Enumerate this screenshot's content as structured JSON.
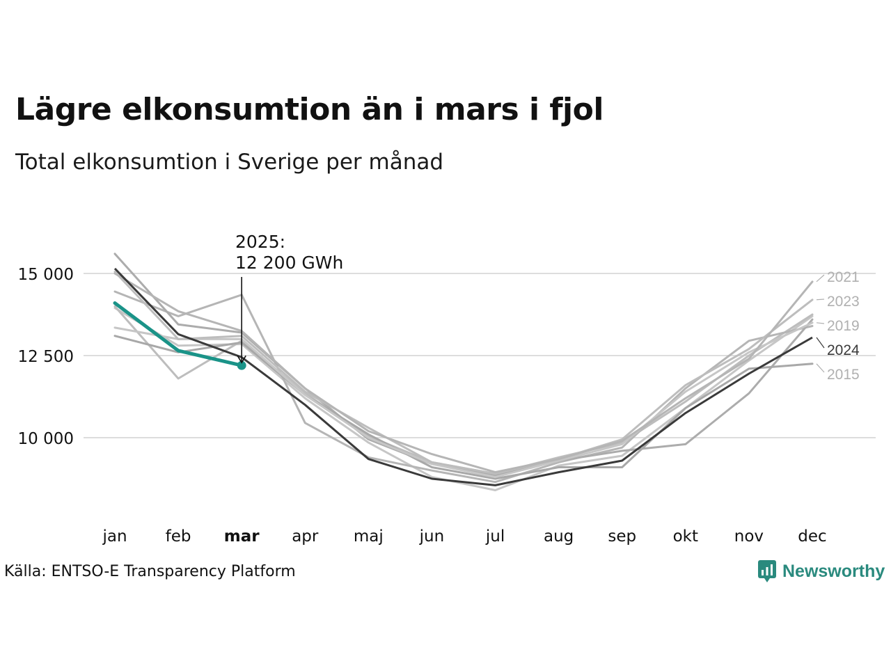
{
  "title": "Lägre elkonsumtion än i mars i fjol",
  "subtitle": "Total elkonsumtion i Sverige per månad",
  "source": "Källa: ENTSO-E Transparency Platform",
  "logo_text": "Newsworthy",
  "annotation": {
    "line1": "2025:",
    "line2": "12 200 GWh"
  },
  "colors": {
    "highlight": "#1a9388",
    "current_year": "#3a3a3a",
    "other_years": "#b8b8b8",
    "grid": "#dddddd"
  },
  "chart_data": {
    "type": "line",
    "categories": [
      "jan",
      "feb",
      "mar",
      "apr",
      "maj",
      "jun",
      "jul",
      "aug",
      "sep",
      "okt",
      "nov",
      "dec"
    ],
    "highlight_category": "mar",
    "y_ticks": [
      10000,
      12500,
      15000
    ],
    "y_tick_labels": [
      "10 000",
      "12 500",
      "15 000"
    ],
    "ylim": [
      7700,
      16200
    ],
    "grid": true,
    "highlight_series": {
      "name": "2025",
      "values": [
        14100,
        12650,
        12200
      ]
    },
    "series": [
      {
        "name": "2024",
        "values": [
          15150,
          13150,
          12450,
          11000,
          9350,
          8750,
          8550,
          8950,
          9300,
          10750,
          11950,
          13050
        ],
        "label": "2024"
      },
      {
        "name": "2021",
        "values": [
          15000,
          13850,
          13250,
          11500,
          10200,
          9500,
          8950,
          9350,
          9900,
          11200,
          12400,
          14750
        ],
        "label": "2021"
      },
      {
        "name": "2023",
        "values": [
          15050,
          13000,
          13100,
          11400,
          10300,
          9250,
          8900,
          9350,
          9950,
          11600,
          12700,
          14200
        ],
        "label": "2023"
      },
      {
        "name": "2019",
        "values": [
          13350,
          13000,
          13000,
          11300,
          10000,
          9200,
          8800,
          9300,
          9800,
          11400,
          12600,
          13500
        ],
        "label": "2019"
      },
      {
        "name": "2015",
        "values": [
          13100,
          12600,
          12900,
          11300,
          10100,
          9100,
          8750,
          9100,
          9100,
          10900,
          12100,
          12250
        ],
        "label": "2015"
      },
      {
        "name": "",
        "values": [
          15600,
          13450,
          13200,
          11500,
          9950,
          9200,
          8850,
          9300,
          9600,
          9800,
          11350,
          13600
        ]
      },
      {
        "name": "",
        "values": [
          14450,
          13700,
          14350,
          10450,
          9400,
          9000,
          8650,
          9250,
          9700,
          11500,
          12950,
          13400
        ]
      },
      {
        "name": "",
        "values": [
          14000,
          11800,
          12950,
          11350,
          10050,
          9250,
          8900,
          9400,
          9850,
          11100,
          12500,
          13750
        ]
      },
      {
        "name": "",
        "values": [
          13950,
          12800,
          12850,
          11200,
          9850,
          8800,
          8400,
          9150,
          9450,
          10900,
          12350,
          13700
        ]
      }
    ]
  }
}
